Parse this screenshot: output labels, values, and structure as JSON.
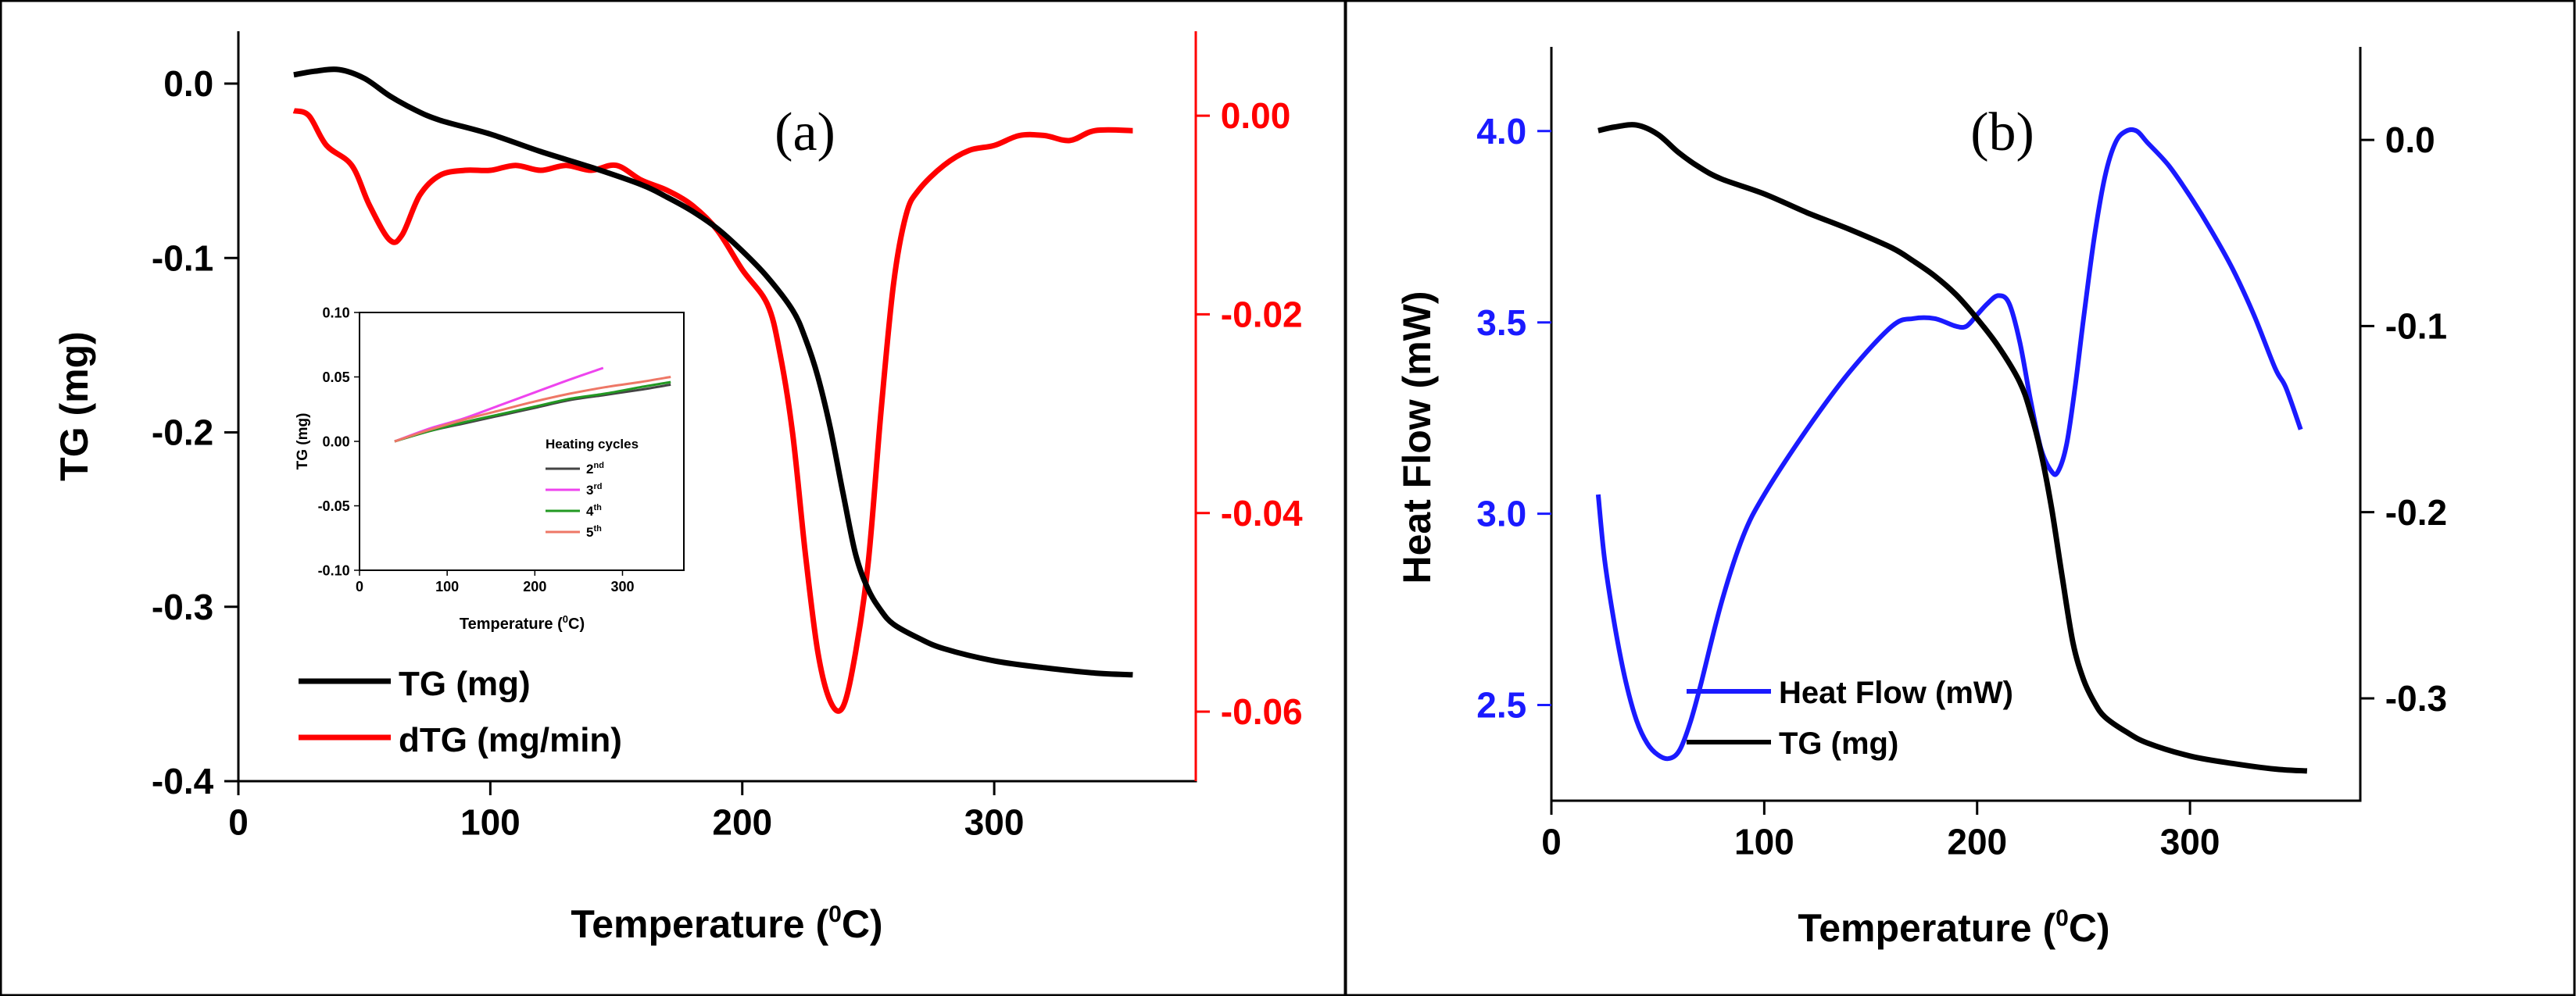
{
  "chart_data": [
    {
      "panel": "(a)",
      "type": "line",
      "title": "(a)",
      "xlabel": "Temperature (",
      "xlabel_sup": "0",
      "xlabel_end": "C)",
      "ylabel": "TG (mg)",
      "y2label": "",
      "xlim": [
        0,
        380
      ],
      "ylim": [
        -0.4,
        0.03
      ],
      "y2lim": [
        -0.067,
        0.0085
      ],
      "xticks": [
        "0",
        "100",
        "200",
        "300"
      ],
      "xtick_values": [
        0,
        100,
        200,
        300
      ],
      "yticks": [
        "-0.4",
        "-0.3",
        "-0.2",
        "-0.1",
        "0.0"
      ],
      "ytick_values": [
        -0.4,
        -0.3,
        -0.2,
        -0.1,
        0.0
      ],
      "y2ticks": [
        "-0.06",
        "-0.04",
        "-0.02",
        "0.00"
      ],
      "y2tick_values": [
        -0.06,
        -0.04,
        -0.02,
        0.0
      ],
      "colors": {
        "tg": "#000000",
        "dtg": "#ff0000",
        "y2axis": "#ff0000"
      },
      "legend": [
        {
          "label": "TG (mg)",
          "color": "#000000"
        },
        {
          "label": "dTG (mg/min)",
          "color": "#ff0000"
        }
      ],
      "series": [
        {
          "name": "TG (mg)",
          "axis": "left",
          "color": "#000000",
          "x": [
            22,
            30,
            40,
            50,
            60,
            70,
            80,
            100,
            120,
            140,
            160,
            170,
            180,
            190,
            200,
            210,
            220,
            225,
            230,
            235,
            240,
            245,
            250,
            255,
            260,
            270,
            280,
            300,
            320,
            340,
            355
          ],
          "values": [
            0.005,
            0.007,
            0.008,
            0.003,
            -0.007,
            -0.015,
            -0.021,
            -0.029,
            -0.039,
            -0.048,
            -0.058,
            -0.065,
            -0.073,
            -0.083,
            -0.096,
            -0.111,
            -0.13,
            -0.146,
            -0.168,
            -0.198,
            -0.235,
            -0.27,
            -0.29,
            -0.302,
            -0.31,
            -0.318,
            -0.324,
            -0.331,
            -0.335,
            -0.338,
            -0.339
          ]
        },
        {
          "name": "dTG (mg/min)",
          "axis": "right",
          "color": "#ff0000",
          "x": [
            22,
            28,
            35,
            45,
            52,
            60,
            65,
            72,
            80,
            90,
            100,
            110,
            120,
            130,
            140,
            150,
            160,
            170,
            180,
            190,
            200,
            210,
            215,
            220,
            225,
            230,
            235,
            240,
            245,
            250,
            255,
            260,
            265,
            270,
            280,
            290,
            300,
            310,
            320,
            330,
            340,
            355
          ],
          "values": [
            0.0005,
            0.0,
            -0.003,
            -0.005,
            -0.009,
            -0.0125,
            -0.012,
            -0.008,
            -0.006,
            -0.0055,
            -0.0055,
            -0.005,
            -0.0055,
            -0.005,
            -0.0055,
            -0.005,
            -0.0065,
            -0.0075,
            -0.009,
            -0.0115,
            -0.0155,
            -0.019,
            -0.024,
            -0.032,
            -0.044,
            -0.054,
            -0.059,
            -0.0595,
            -0.054,
            -0.045,
            -0.03,
            -0.017,
            -0.01,
            -0.0075,
            -0.005,
            -0.0035,
            -0.003,
            -0.002,
            -0.002,
            -0.0025,
            -0.0015,
            -0.0015
          ]
        }
      ],
      "inset": {
        "type": "line",
        "xlabel": "Temperature (",
        "xlabel_sup": "0",
        "xlabel_end": "C)",
        "ylabel": "TG (mg)",
        "xlim": [
          0,
          370
        ],
        "ylim": [
          -0.1,
          0.1
        ],
        "xticks": [
          "0",
          "100",
          "200",
          "300"
        ],
        "xtick_values": [
          0,
          100,
          200,
          300
        ],
        "yticks": [
          "-0.10",
          "-0.05",
          "0.00",
          "0.05",
          "0.10"
        ],
        "ytick_values": [
          -0.1,
          -0.05,
          0.0,
          0.05,
          0.1
        ],
        "legend_title": "Heating cycles",
        "legend": [
          {
            "label": "2",
            "sup": "nd",
            "color": "#444444"
          },
          {
            "label": "3",
            "sup": "rd",
            "color": "#ee44ee"
          },
          {
            "label": "4",
            "sup": "th",
            "color": "#229922"
          },
          {
            "label": "5",
            "sup": "th",
            "color": "#ee7766"
          }
        ],
        "series": [
          {
            "name": "2nd",
            "color": "#444444",
            "x": [
              40,
              80,
              120,
              160,
              200,
              240,
              280,
              320,
              355
            ],
            "values": [
              0.0,
              0.008,
              0.014,
              0.02,
              0.026,
              0.032,
              0.036,
              0.04,
              0.044
            ]
          },
          {
            "name": "3rd",
            "color": "#ee44ee",
            "x": [
              40,
              80,
              120,
              160,
              200,
              240,
              278
            ],
            "values": [
              0.0,
              0.01,
              0.018,
              0.028,
              0.038,
              0.048,
              0.057
            ]
          },
          {
            "name": "4th",
            "color": "#229922",
            "x": [
              40,
              80,
              120,
              160,
              200,
              240,
              280,
              320,
              355
            ],
            "values": [
              0.0,
              0.008,
              0.015,
              0.021,
              0.027,
              0.033,
              0.037,
              0.042,
              0.046
            ]
          },
          {
            "name": "5th",
            "color": "#ee7766",
            "x": [
              40,
              80,
              120,
              160,
              200,
              240,
              280,
              320,
              355
            ],
            "values": [
              0.0,
              0.009,
              0.017,
              0.024,
              0.031,
              0.037,
              0.042,
              0.046,
              0.05
            ]
          }
        ]
      }
    },
    {
      "panel": "(b)",
      "type": "line",
      "title": "(b)",
      "xlabel": "Temperature (",
      "xlabel_sup": "0",
      "xlabel_end": "C)",
      "ylabel": "Heat Flow (mW)",
      "xlim": [
        0,
        380
      ],
      "ylim": [
        2.25,
        4.22
      ],
      "y2lim": [
        -0.355,
        0.05
      ],
      "xticks": [
        "0",
        "100",
        "200",
        "300"
      ],
      "xtick_values": [
        0,
        100,
        200,
        300
      ],
      "yticks": [
        "2.5",
        "3.0",
        "3.5",
        "4.0"
      ],
      "ytick_values": [
        2.5,
        3.0,
        3.5,
        4.0
      ],
      "y2ticks": [
        "-0.3",
        "-0.2",
        "-0.1",
        "0.0"
      ],
      "y2tick_values": [
        -0.3,
        -0.2,
        -0.1,
        0.0
      ],
      "colors": {
        "heat_flow": "#1a1aff",
        "tg": "#000000",
        "yaxis": "#1a1aff"
      },
      "legend": [
        {
          "label": "Heat Flow (mW)",
          "color": "#1a1aff"
        },
        {
          "label": "TG (mg)",
          "color": "#000000"
        }
      ],
      "series": [
        {
          "name": "Heat Flow (mW)",
          "axis": "left",
          "color": "#1a1aff",
          "x": [
            22,
            25,
            30,
            35,
            40,
            45,
            50,
            55,
            60,
            65,
            70,
            80,
            90,
            100,
            120,
            140,
            160,
            170,
            180,
            190,
            195,
            200,
            205,
            210,
            215,
            220,
            225,
            230,
            235,
            238,
            242,
            246,
            250,
            255,
            260,
            265,
            270,
            275,
            280,
            290,
            300,
            310,
            320,
            330,
            340,
            345,
            352
          ],
          "values": [
            3.05,
            2.88,
            2.7,
            2.56,
            2.46,
            2.4,
            2.37,
            2.36,
            2.38,
            2.45,
            2.55,
            2.77,
            2.94,
            3.05,
            3.22,
            3.37,
            3.49,
            3.51,
            3.51,
            3.49,
            3.49,
            3.52,
            3.55,
            3.57,
            3.55,
            3.45,
            3.3,
            3.17,
            3.11,
            3.11,
            3.18,
            3.33,
            3.51,
            3.72,
            3.88,
            3.97,
            4.0,
            4.0,
            3.97,
            3.91,
            3.83,
            3.74,
            3.64,
            3.52,
            3.38,
            3.33,
            3.22
          ]
        },
        {
          "name": "TG (mg)",
          "axis": "right",
          "color": "#000000",
          "x": [
            22,
            30,
            40,
            50,
            60,
            70,
            80,
            100,
            120,
            140,
            160,
            170,
            180,
            190,
            200,
            210,
            220,
            225,
            230,
            235,
            240,
            245,
            250,
            255,
            260,
            270,
            280,
            300,
            320,
            340,
            355
          ],
          "values": [
            0.005,
            0.007,
            0.008,
            0.003,
            -0.007,
            -0.015,
            -0.021,
            -0.029,
            -0.039,
            -0.048,
            -0.058,
            -0.065,
            -0.073,
            -0.083,
            -0.096,
            -0.111,
            -0.13,
            -0.146,
            -0.168,
            -0.198,
            -0.235,
            -0.27,
            -0.29,
            -0.302,
            -0.31,
            -0.318,
            -0.324,
            -0.331,
            -0.335,
            -0.338,
            -0.339
          ]
        }
      ]
    }
  ]
}
